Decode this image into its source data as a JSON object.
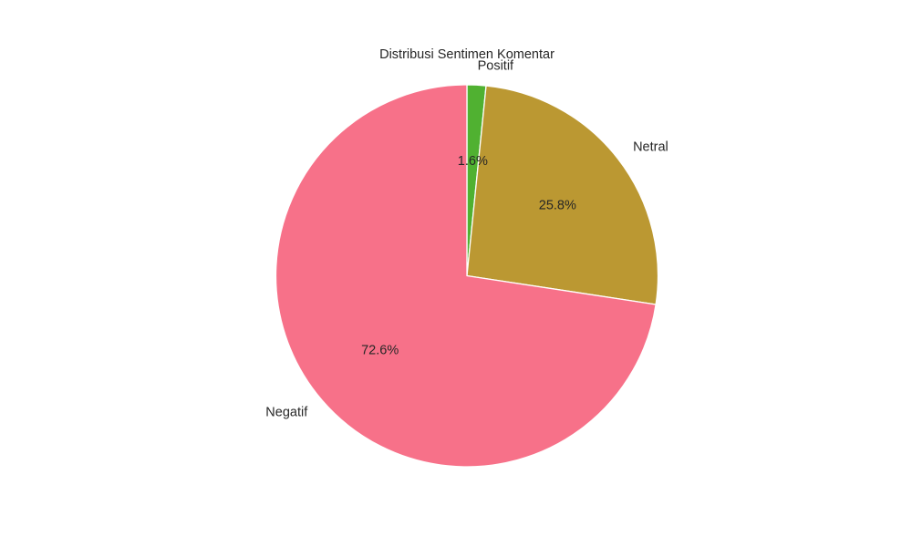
{
  "chart_data": {
    "type": "pie",
    "title": "Distribusi Sentimen Komentar",
    "labels": [
      "Positif",
      "Netral",
      "Negatif"
    ],
    "values": [
      1.6,
      25.8,
      72.6
    ],
    "percent_labels": [
      "1.6%",
      "25.8%",
      "72.6%"
    ],
    "colors": [
      "#50b131",
      "#bb9832",
      "#f77189"
    ],
    "start_angle_deg": 90,
    "direction": "clockwise",
    "edge_color": "#ffffff"
  }
}
